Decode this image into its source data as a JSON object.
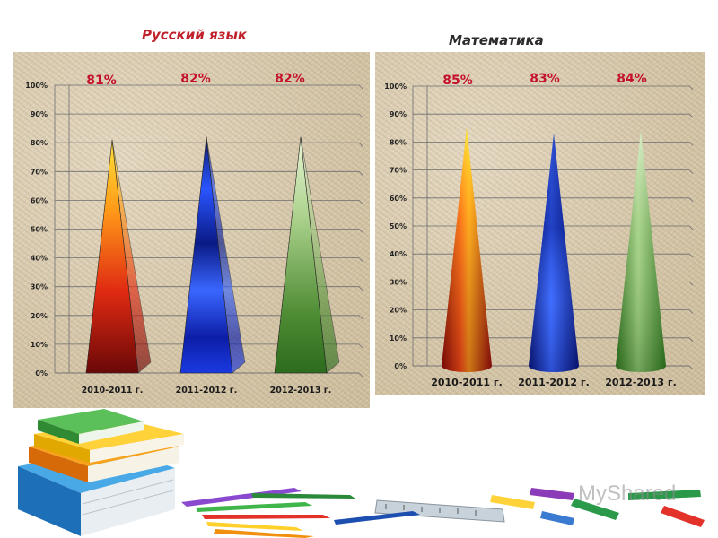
{
  "chart_data": [
    {
      "type": "bar",
      "title": "Русский язык",
      "categories": [
        "2010-2011 г.",
        "2011-2012 г.",
        "2012-2013 г."
      ],
      "values": [
        81,
        82,
        82
      ],
      "data_labels": [
        "81%",
        "82%",
        "82%"
      ],
      "ylim": [
        0,
        100
      ],
      "yticks": [
        "0%",
        "10%",
        "20%",
        "30%",
        "40%",
        "50%",
        "60%",
        "70%",
        "80%",
        "90%",
        "100%"
      ],
      "shape": "pyramid",
      "grid": true,
      "legend": "none",
      "colors": [
        "#d8301a",
        "#1530c8",
        "#5e9a3e"
      ]
    },
    {
      "type": "bar",
      "title": "Математика",
      "categories": [
        "2010-2011 г.",
        "2011-2012 г.",
        "2012-2013 г."
      ],
      "values": [
        85,
        83,
        84
      ],
      "data_labels": [
        "85%",
        "83%",
        "84%"
      ],
      "ylim": [
        0,
        100
      ],
      "yticks": [
        "0%",
        "10%",
        "20%",
        "30%",
        "40%",
        "50%",
        "60%",
        "70%",
        "80%",
        "90%",
        "100%"
      ],
      "shape": "cone",
      "grid": true,
      "legend": "none",
      "colors": [
        "#d8301a",
        "#1530c8",
        "#5e9a3e"
      ]
    }
  ],
  "watermark": "MyShared"
}
